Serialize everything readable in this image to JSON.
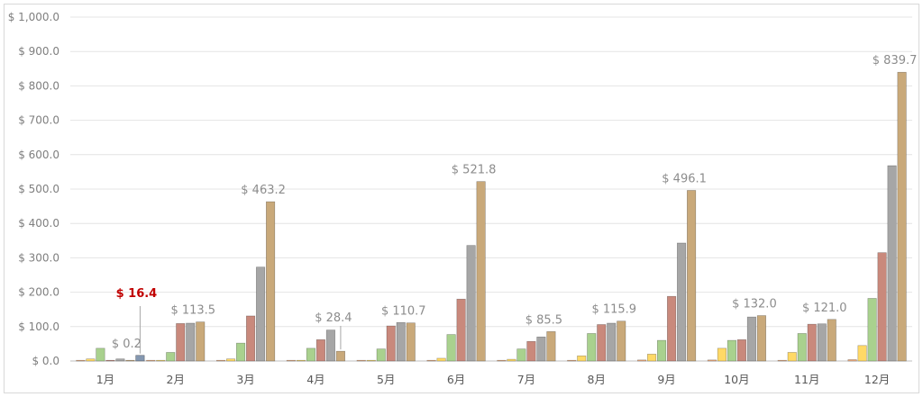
{
  "chart_data": {
    "type": "bar",
    "categories": [
      "1月",
      "2月",
      "3月",
      "4月",
      "5月",
      "6月",
      "7月",
      "8月",
      "9月",
      "10月",
      "11月",
      "12月"
    ],
    "series": [
      {
        "color": "#f4b183",
        "values": [
          0.3,
          0.5,
          1.0,
          0.5,
          0.8,
          2.0,
          0.5,
          1.5,
          3.0,
          3.0,
          1.5,
          4.0
        ]
      },
      {
        "color": "#ffd966",
        "values": [
          6.0,
          1.0,
          6.0,
          2.0,
          1.0,
          8.0,
          5.0,
          15.0,
          20.0,
          37.0,
          25.0,
          45.0
        ]
      },
      {
        "color": "#a9d18e",
        "values": [
          37.0,
          25.0,
          52.0,
          37.0,
          35.0,
          77.0,
          35.0,
          80.0,
          60.0,
          60.0,
          80.0,
          182.0
        ]
      },
      {
        "color": "#c9897c",
        "values": [
          1.0,
          109.0,
          131.0,
          62.0,
          102.0,
          180.0,
          57.0,
          106.0,
          188.0,
          62.0,
          107.0,
          315.0
        ]
      },
      {
        "color": "#a6a6a6",
        "values": [
          6.0,
          110.0,
          273.0,
          90.0,
          112.0,
          336.0,
          70.0,
          110.0,
          343.0,
          128.0,
          108.0,
          568.0
        ]
      },
      {
        "color": "#c9a97a",
        "values": [
          0.2,
          113.5,
          463.2,
          28.4,
          110.7,
          521.8,
          85.5,
          115.9,
          496.1,
          132.0,
          121.0,
          839.7
        ]
      }
    ],
    "highlight": {
      "category": "1月",
      "value": 16.4,
      "color": "#8497b0"
    },
    "data_labels": [
      "$ 0.2",
      "$ 113.5",
      "$ 463.2",
      "$ 28.4",
      "$ 110.7",
      "$ 521.8",
      "$ 85.5",
      "$ 115.9",
      "$ 496.1",
      "$ 132.0",
      "$ 121.0",
      "$ 839.7"
    ],
    "highlight_label": "$ 16.4",
    "y_ticks": [
      0,
      100,
      200,
      300,
      400,
      500,
      600,
      700,
      800,
      900,
      1000
    ],
    "y_tick_labels": [
      "$ 0.0",
      "$ 100.0",
      "$ 200.0",
      "$ 300.0",
      "$ 400.0",
      "$ 500.0",
      "$ 600.0",
      "$ 700.0",
      "$ 800.0",
      "$ 900.0",
      "$ 1,000.0"
    ],
    "ylim": [
      0,
      1000
    ],
    "grid": true,
    "legend": "none",
    "colors": {
      "gridline": "#e4e4e4",
      "axis": "#bfbfbf",
      "highlight_label": "#c00000",
      "label": "#8c8c8c"
    }
  }
}
